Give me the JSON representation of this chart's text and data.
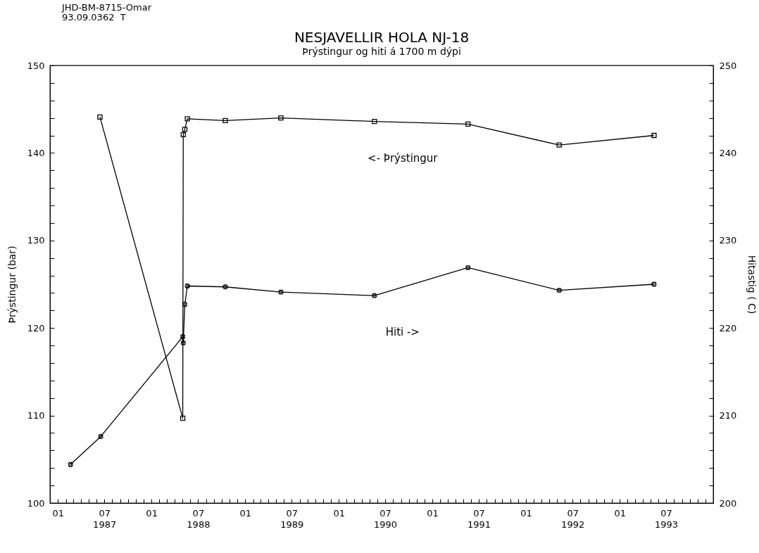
{
  "chart_data": {
    "type": "line",
    "title": "NESJAVELLIR  HOLA NJ-18",
    "subtitle": "Þrýstingur og hiti á 1700 m dýpi",
    "ylabel": "Þrýstingur   (bar)",
    "y2label": "Hitastig   ( C)",
    "annotations": [
      "JHD-BM-8715-Omar\n93.09.0362  T"
    ],
    "grid": false,
    "xlim": [
      "1986-12-01",
      "1994-01-01"
    ],
    "xticks": [
      {
        "value": "1986-12-01",
        "label": null
      },
      {
        "value": "1987-01-01",
        "label": "01"
      },
      {
        "value": "1987-02-01",
        "label": null
      },
      {
        "value": "1987-03-01",
        "label": null
      },
      {
        "value": "1987-04-01",
        "label": null
      },
      {
        "value": "1987-05-01",
        "label": null
      },
      {
        "value": "1987-06-01",
        "label": null
      },
      {
        "value": "1987-07-01",
        "label": "07\n1987"
      },
      {
        "value": "1987-08-01",
        "label": null
      },
      {
        "value": "1987-09-01",
        "label": null
      },
      {
        "value": "1987-10-01",
        "label": null
      },
      {
        "value": "1987-11-01",
        "label": null
      },
      {
        "value": "1987-12-01",
        "label": null
      },
      {
        "value": "1988-01-01",
        "label": "01"
      },
      {
        "value": "1988-02-01",
        "label": null
      },
      {
        "value": "1988-03-01",
        "label": null
      },
      {
        "value": "1988-04-01",
        "label": null
      },
      {
        "value": "1988-05-01",
        "label": null
      },
      {
        "value": "1988-06-01",
        "label": null
      },
      {
        "value": "1988-07-01",
        "label": "07\n1988"
      },
      {
        "value": "1988-08-01",
        "label": null
      },
      {
        "value": "1988-09-01",
        "label": null
      },
      {
        "value": "1988-10-01",
        "label": null
      },
      {
        "value": "1988-11-01",
        "label": null
      },
      {
        "value": "1988-12-01",
        "label": null
      },
      {
        "value": "1989-01-01",
        "label": "01"
      },
      {
        "value": "1989-02-01",
        "label": null
      },
      {
        "value": "1989-03-01",
        "label": null
      },
      {
        "value": "1989-04-01",
        "label": null
      },
      {
        "value": "1989-05-01",
        "label": null
      },
      {
        "value": "1989-06-01",
        "label": null
      },
      {
        "value": "1989-07-01",
        "label": "07\n1989"
      },
      {
        "value": "1989-08-01",
        "label": null
      },
      {
        "value": "1989-09-01",
        "label": null
      },
      {
        "value": "1989-10-01",
        "label": null
      },
      {
        "value": "1989-11-01",
        "label": null
      },
      {
        "value": "1989-12-01",
        "label": null
      },
      {
        "value": "1990-01-01",
        "label": "01"
      },
      {
        "value": "1990-02-01",
        "label": null
      },
      {
        "value": "1990-03-01",
        "label": null
      },
      {
        "value": "1990-04-01",
        "label": null
      },
      {
        "value": "1990-05-01",
        "label": null
      },
      {
        "value": "1990-06-01",
        "label": null
      },
      {
        "value": "1990-07-01",
        "label": "07\n1990"
      },
      {
        "value": "1990-08-01",
        "label": null
      },
      {
        "value": "1990-09-01",
        "label": null
      },
      {
        "value": "1990-10-01",
        "label": null
      },
      {
        "value": "1990-11-01",
        "label": null
      },
      {
        "value": "1990-12-01",
        "label": null
      },
      {
        "value": "1991-01-01",
        "label": "01"
      },
      {
        "value": "1991-02-01",
        "label": null
      },
      {
        "value": "1991-03-01",
        "label": null
      },
      {
        "value": "1991-04-01",
        "label": null
      },
      {
        "value": "1991-05-01",
        "label": null
      },
      {
        "value": "1991-06-01",
        "label": null
      },
      {
        "value": "1991-07-01",
        "label": "07\n1991"
      },
      {
        "value": "1991-08-01",
        "label": null
      },
      {
        "value": "1991-09-01",
        "label": null
      },
      {
        "value": "1991-10-01",
        "label": null
      },
      {
        "value": "1991-11-01",
        "label": null
      },
      {
        "value": "1991-12-01",
        "label": null
      },
      {
        "value": "1992-01-01",
        "label": "01"
      },
      {
        "value": "1992-02-01",
        "label": null
      },
      {
        "value": "1992-03-01",
        "label": null
      },
      {
        "value": "1992-04-01",
        "label": null
      },
      {
        "value": "1992-05-01",
        "label": null
      },
      {
        "value": "1992-06-01",
        "label": null
      },
      {
        "value": "1992-07-01",
        "label": "07\n1992"
      },
      {
        "value": "1992-08-01",
        "label": null
      },
      {
        "value": "1992-09-01",
        "label": null
      },
      {
        "value": "1992-10-01",
        "label": null
      },
      {
        "value": "1992-11-01",
        "label": null
      },
      {
        "value": "1992-12-01",
        "label": null
      },
      {
        "value": "1993-01-01",
        "label": "01"
      },
      {
        "value": "1993-02-01",
        "label": null
      },
      {
        "value": "1993-03-01",
        "label": null
      },
      {
        "value": "1993-04-01",
        "label": null
      },
      {
        "value": "1993-05-01",
        "label": null
      },
      {
        "value": "1993-06-01",
        "label": null
      },
      {
        "value": "1993-07-01",
        "label": "07\n1993"
      },
      {
        "value": "1993-08-01",
        "label": null
      },
      {
        "value": "1993-09-01",
        "label": null
      },
      {
        "value": "1993-10-01",
        "label": null
      },
      {
        "value": "1993-11-01",
        "label": null
      },
      {
        "value": "1993-12-01",
        "label": null
      },
      {
        "value": "1994-01-01",
        "label": null
      }
    ],
    "ylim": [
      100,
      150
    ],
    "yticks": [
      100,
      {
        "value": 102,
        "label": null
      },
      {
        "value": 104,
        "label": null
      },
      {
        "value": 106,
        "label": null
      },
      {
        "value": 108,
        "label": null
      },
      110,
      {
        "value": 112,
        "label": null
      },
      {
        "value": 114,
        "label": null
      },
      {
        "value": 116,
        "label": null
      },
      {
        "value": 118,
        "label": null
      },
      120,
      {
        "value": 122,
        "label": null
      },
      {
        "value": 124,
        "label": null
      },
      {
        "value": 126,
        "label": null
      },
      {
        "value": 128,
        "label": null
      },
      130,
      {
        "value": 132,
        "label": null
      },
      {
        "value": 134,
        "label": null
      },
      {
        "value": 136,
        "label": null
      },
      {
        "value": 138,
        "label": null
      },
      140,
      {
        "value": 142,
        "label": null
      },
      {
        "value": 144,
        "label": null
      },
      {
        "value": 146,
        "label": null
      },
      {
        "value": 148,
        "label": null
      },
      150
    ],
    "y2lim": [
      200,
      250
    ],
    "y2ticks": [
      200,
      {
        "value": 202,
        "label": null
      },
      {
        "value": 204,
        "label": null
      },
      {
        "value": 206,
        "label": null
      },
      {
        "value": 208,
        "label": null
      },
      210,
      {
        "value": 212,
        "label": null
      },
      {
        "value": 214,
        "label": null
      },
      {
        "value": 216,
        "label": null
      },
      {
        "value": 218,
        "label": null
      },
      220,
      {
        "value": 222,
        "label": null
      },
      {
        "value": 224,
        "label": null
      },
      {
        "value": 226,
        "label": null
      },
      {
        "value": 228,
        "label": null
      },
      230,
      {
        "value": 232,
        "label": null
      },
      {
        "value": 234,
        "label": null
      },
      {
        "value": 236,
        "label": null
      },
      {
        "value": 238,
        "label": null
      },
      240,
      {
        "value": 242,
        "label": null
      },
      {
        "value": 244,
        "label": null
      },
      {
        "value": 246,
        "label": null
      },
      {
        "value": 248,
        "label": null
      },
      250
    ],
    "series": [
      {
        "name": "<- Þrýstingur",
        "color": "#000000",
        "marker": "square",
        "x": [
          "1987-06-14",
          "1988-05-02",
          "1988-05-04",
          "1988-05-10",
          "1988-05-20",
          "1988-10-15",
          "1989-05-20",
          "1990-05-20",
          "1991-05-20",
          "1992-05-10",
          "1993-05-15"
        ],
        "values": [
          144.1,
          109.7,
          142.1,
          142.7,
          143.9,
          143.7,
          144.0,
          143.6,
          143.3,
          140.9,
          142.0
        ]
      },
      {
        "name": "Hiti ->",
        "color": "#000000",
        "marker": "cross",
        "axis": "y2",
        "x": [
          "1987-02-19",
          "1987-06-17",
          "1988-05-02",
          "1988-05-04",
          "1988-05-10",
          "1988-05-20",
          "1988-10-15",
          "1989-05-20",
          "1990-05-20",
          "1991-05-20",
          "1992-05-10",
          "1993-05-15"
        ],
        "values": [
          204.4,
          207.6,
          219.0,
          218.3,
          222.7,
          224.8,
          224.7,
          224.1,
          223.7,
          226.9,
          224.3,
          225.0
        ]
      }
    ]
  }
}
